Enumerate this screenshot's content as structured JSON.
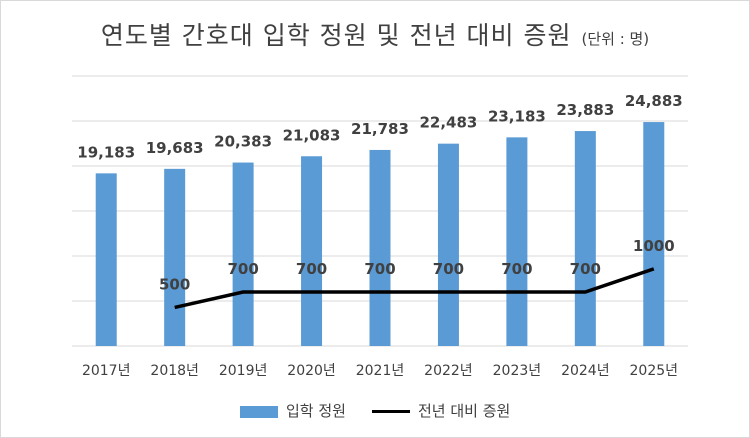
{
  "title": "연도별 간호대 입학 정원 및 전년 대비 증원",
  "unit": "(단위 : 명)",
  "colors": {
    "bar": "#5b9bd5",
    "line": "#000000",
    "grid": "#d9d9d9",
    "text": "#404040"
  },
  "chart_data": {
    "type": "bar",
    "categories": [
      "2017년",
      "2018년",
      "2019년",
      "2020년",
      "2021년",
      "2022년",
      "2023년",
      "2024년",
      "2025년"
    ],
    "series": [
      {
        "name": "입학 정원",
        "type": "bar",
        "values": [
          19183,
          19683,
          20383,
          21083,
          21783,
          22483,
          23183,
          23883,
          24883
        ],
        "labels": [
          "19,183",
          "19,683",
          "20,383",
          "21,083",
          "21,783",
          "22,483",
          "23,183",
          "23,883",
          "24,883"
        ]
      },
      {
        "name": "전년 대비 증원",
        "type": "line",
        "values": [
          null,
          500,
          700,
          700,
          700,
          700,
          700,
          700,
          1000
        ],
        "labels": [
          "",
          "500",
          "700",
          "700",
          "700",
          "700",
          "700",
          "700",
          "1000"
        ]
      }
    ],
    "ylim": [
      0,
      30000
    ],
    "y2lim": [
      0,
      3500
    ],
    "grid": true,
    "legend": "bottom"
  }
}
